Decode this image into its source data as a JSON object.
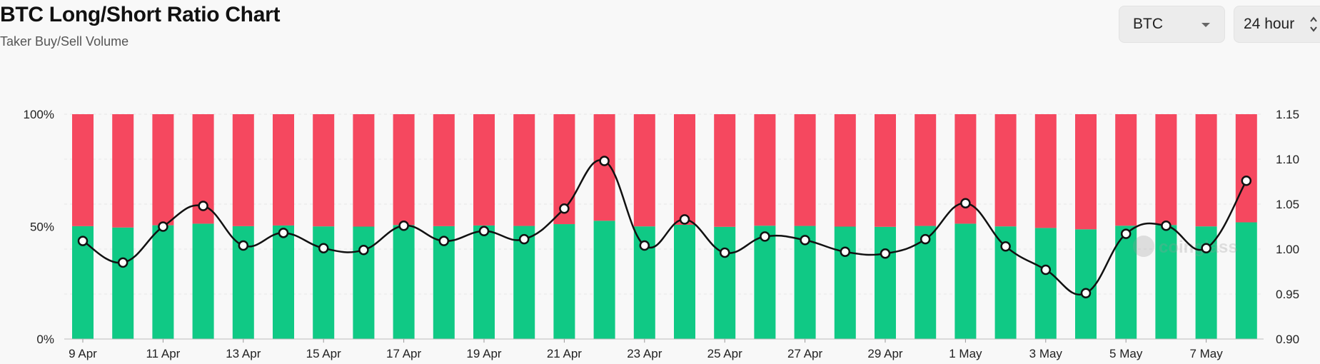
{
  "header": {
    "title": "BTC Long/Short Ratio Chart",
    "subtitle": "Taker Buy/Sell Volume"
  },
  "controls": {
    "symbol": "BTC",
    "interval": "24 hour"
  },
  "colors": {
    "long": "#10c985",
    "short": "#f5485f",
    "ratio_line": "#111111",
    "background": "#f8f8f8"
  },
  "watermark": "coinglass",
  "chart_data": {
    "type": "bar",
    "stacked": true,
    "categories": [
      "9 Apr",
      "10 Apr",
      "11 Apr",
      "12 Apr",
      "13 Apr",
      "14 Apr",
      "15 Apr",
      "16 Apr",
      "17 Apr",
      "18 Apr",
      "19 Apr",
      "20 Apr",
      "21 Apr",
      "22 Apr",
      "23 Apr",
      "24 Apr",
      "25 Apr",
      "26 Apr",
      "27 Apr",
      "28 Apr",
      "29 Apr",
      "30 Apr",
      "1 May",
      "2 May",
      "3 May",
      "4 May",
      "5 May",
      "6 May",
      "7 May",
      "8 May"
    ],
    "x_tick_labels": [
      "9 Apr",
      "11 Apr",
      "13 Apr",
      "15 Apr",
      "17 Apr",
      "19 Apr",
      "21 Apr",
      "23 Apr",
      "25 Apr",
      "27 Apr",
      "29 Apr",
      "1 May",
      "3 May",
      "5 May",
      "7 May"
    ],
    "series": [
      {
        "type": "bar",
        "axis": "left",
        "values": [
          50.2,
          49.6,
          50.6,
          51.3,
          50.2,
          50.5,
          50.1,
          50.0,
          50.7,
          50.2,
          50.5,
          50.3,
          51.1,
          52.6,
          50.1,
          50.8,
          49.9,
          50.4,
          50.3,
          50.0,
          49.9,
          50.3,
          51.3,
          50.1,
          49.4,
          48.8,
          50.4,
          50.7,
          50.1,
          51.9
        ]
      },
      {
        "type": "bar",
        "axis": "left",
        "values": [
          49.8,
          50.4,
          49.4,
          48.7,
          49.8,
          49.5,
          49.9,
          50.0,
          49.3,
          49.8,
          49.5,
          49.7,
          48.9,
          47.4,
          49.9,
          49.2,
          50.1,
          49.6,
          49.7,
          50.0,
          50.1,
          49.7,
          48.7,
          49.9,
          50.6,
          51.2,
          49.6,
          49.3,
          49.9,
          48.1
        ]
      },
      {
        "type": "line",
        "axis": "right",
        "values": [
          1.009,
          0.985,
          1.025,
          1.048,
          1.004,
          1.018,
          1.001,
          0.999,
          1.026,
          1.009,
          1.02,
          1.011,
          1.045,
          1.098,
          1.004,
          1.033,
          0.996,
          1.014,
          1.01,
          0.997,
          0.995,
          1.011,
          1.051,
          1.003,
          0.977,
          0.951,
          1.017,
          1.026,
          1.001,
          1.076
        ]
      }
    ],
    "y_left": {
      "ticks": [
        "0%",
        "50%",
        "100%"
      ],
      "range": [
        0,
        100
      ]
    },
    "y_right": {
      "ticks": [
        "0.90",
        "0.95",
        "1.00",
        "1.05",
        "1.10",
        "1.15"
      ],
      "range": [
        0.9,
        1.15
      ]
    },
    "grid": true,
    "legend": "none"
  }
}
